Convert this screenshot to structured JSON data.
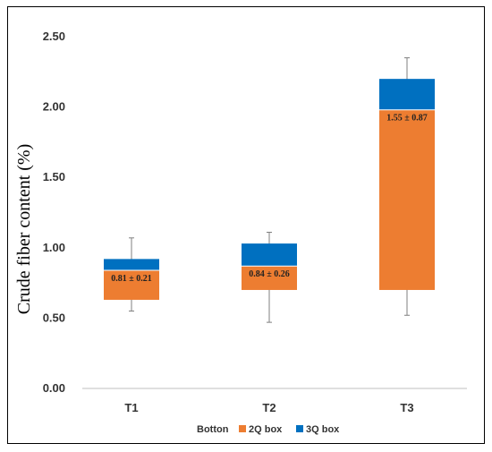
{
  "chart_data": {
    "type": "bar",
    "subtype": "stacked-box-plot",
    "title": "",
    "xlabel": "",
    "ylabel": "Crude fiber content (%)",
    "ylim": [
      0,
      2.5
    ],
    "yticks": [
      "0.00",
      "0.50",
      "1.00",
      "1.50",
      "2.00",
      "2.50"
    ],
    "categories": [
      "T1",
      "T2",
      "T3"
    ],
    "series": [
      {
        "name": "Botton",
        "color": "#ffffff",
        "values": [
          0.63,
          0.7,
          0.7
        ]
      },
      {
        "name": "2Q box",
        "color": "#ED7D31",
        "values": [
          0.21,
          0.17,
          1.28
        ]
      },
      {
        "name": "3Q box",
        "color": "#0070C0",
        "values": [
          0.08,
          0.16,
          0.22
        ]
      }
    ],
    "whiskers": [
      {
        "min": 0.55,
        "max": 1.07
      },
      {
        "min": 0.47,
        "max": 1.11
      },
      {
        "min": 0.52,
        "max": 2.35
      }
    ],
    "data_labels": [
      "0.81 ± 0.21",
      "0.84 ± 0.26",
      "1.55 ± 0.87"
    ],
    "grid": false,
    "legend_position": "bottom"
  }
}
